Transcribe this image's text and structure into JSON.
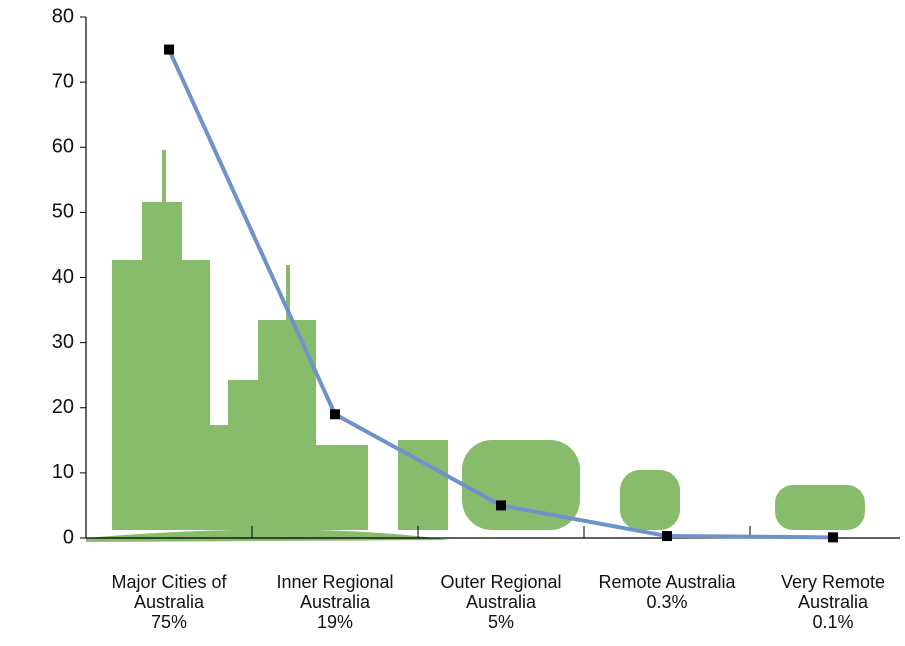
{
  "chart_data": {
    "type": "line",
    "categories": [
      "Major Cities of Australia",
      "Inner Regional Australia",
      "Outer Regional Australia",
      "Remote Australia",
      "Very Remote Australia"
    ],
    "values": [
      75,
      19,
      5,
      0.3,
      0.1
    ],
    "value_labels": [
      "75%",
      "19%",
      "5%",
      "0.3%",
      "0.1%"
    ],
    "color": "#6f93c8",
    "ylim": [
      0,
      80
    ],
    "yticks": [
      0,
      10,
      20,
      30,
      40,
      50,
      60,
      70,
      80
    ]
  }
}
